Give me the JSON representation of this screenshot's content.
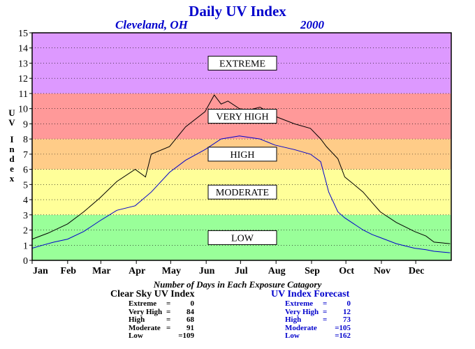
{
  "chart_data": {
    "type": "line",
    "title": "Daily UV Index",
    "subtitle_location": "Cleveland, OH",
    "subtitle_year": "2000",
    "ylabel": "UV Index",
    "xlabel": "",
    "ylim": [
      0,
      15
    ],
    "yticks": [
      0,
      1,
      2,
      3,
      4,
      5,
      6,
      7,
      8,
      9,
      10,
      11,
      12,
      13,
      14,
      15
    ],
    "months": [
      "Jan",
      "Feb",
      "Mar",
      "Apr",
      "May",
      "Jun",
      "Jul",
      "Aug",
      "Sep",
      "Oct",
      "Nov",
      "Dec"
    ],
    "grid": "horizontal-dotted",
    "bands": [
      {
        "label": "LOW",
        "from": 0,
        "to": 3,
        "color": "#99ff99"
      },
      {
        "label": "MODERATE",
        "from": 3,
        "to": 6,
        "color": "#ffff99"
      },
      {
        "label": "HIGH",
        "from": 6,
        "to": 8,
        "color": "#ffcc88"
      },
      {
        "label": "VERY HIGH",
        "from": 8,
        "to": 11,
        "color": "#ff9999"
      },
      {
        "label": "EXTREME",
        "from": 11,
        "to": 15,
        "color": "#dd99ff"
      }
    ],
    "series": [
      {
        "color": "#000000",
        "days": [
          1,
          15,
          32,
          46,
          60,
          75,
          91,
          100,
          105,
          121,
          135,
          152,
          160,
          166,
          172,
          182,
          190,
          200,
          213,
          230,
          244,
          253,
          258,
          268,
          274,
          282,
          290,
          298,
          305,
          319,
          335,
          345,
          352,
          366
        ],
        "values": [
          1.4,
          1.8,
          2.4,
          3.2,
          4.1,
          5.2,
          6.0,
          5.5,
          7.0,
          7.5,
          8.8,
          9.8,
          10.9,
          10.3,
          10.5,
          10.0,
          9.9,
          10.1,
          9.5,
          9.0,
          8.7,
          8.0,
          7.5,
          6.7,
          5.5,
          5.0,
          4.5,
          3.8,
          3.2,
          2.5,
          1.9,
          1.6,
          1.2,
          1.1
        ]
      },
      {
        "color": "#0000cc",
        "days": [
          1,
          10,
          20,
          32,
          46,
          60,
          75,
          91,
          105,
          121,
          135,
          152,
          166,
          182,
          200,
          213,
          230,
          244,
          253,
          260,
          268,
          274,
          282,
          290,
          298,
          305,
          319,
          335,
          345,
          352,
          366
        ],
        "values": [
          0.8,
          1.0,
          1.2,
          1.4,
          1.9,
          2.6,
          3.3,
          3.6,
          4.5,
          5.8,
          6.6,
          7.3,
          8.0,
          8.2,
          8.0,
          7.6,
          7.3,
          7.0,
          6.5,
          4.5,
          3.2,
          2.8,
          2.4,
          2.0,
          1.7,
          1.5,
          1.1,
          0.8,
          0.7,
          0.6,
          0.5
        ]
      }
    ]
  },
  "stats": {
    "heading": "Number of Days in Each Exposure Catagory",
    "clear_sky": {
      "title": "Clear Sky UV Index",
      "rows": [
        {
          "label": "Extreme",
          "value": "0"
        },
        {
          "label": "Very High",
          "value": "84"
        },
        {
          "label": "High",
          "value": "68"
        },
        {
          "label": "Moderate",
          "value": "91"
        },
        {
          "label": "Low",
          "value": "=109"
        }
      ]
    },
    "forecast": {
      "title": "UV Index Forecast",
      "rows": [
        {
          "label": "Extreme",
          "value": "0"
        },
        {
          "label": "Very High",
          "value": "12"
        },
        {
          "label": "High",
          "value": "73"
        },
        {
          "label": "Moderate",
          "value": "=105"
        },
        {
          "label": "Low",
          "value": "=162"
        }
      ]
    }
  }
}
